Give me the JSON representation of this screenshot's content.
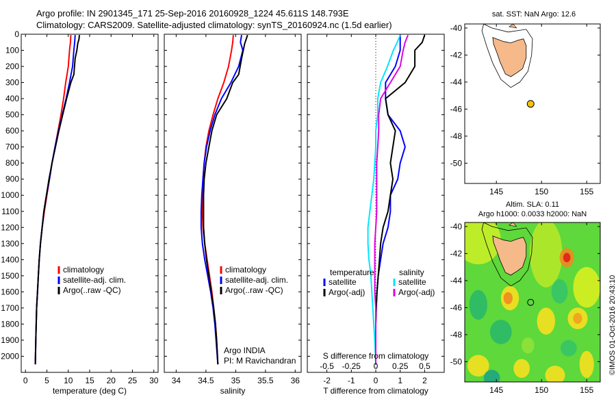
{
  "header": {
    "line1": "Argo profile: IN 2901345_171 25-Sep-2016 20160928_1224 45.611S 148.793E",
    "line2": "Climatology: CARS2009. Satellite-adjusted climatology: synTS_20160924.nc (1.5d earlier)"
  },
  "colors": {
    "climatology": "#ff0000",
    "satellite": "#0000ff",
    "argo": "#000000",
    "cyan": "#00e5ff",
    "magenta": "#e000e0",
    "land": "#f5b98a"
  },
  "chart_data": [
    {
      "type": "line",
      "name": "temperature-profile",
      "xlabel": "temperature (deg C)",
      "ylabel": "",
      "xlim": [
        -1,
        31
      ],
      "ylim": [
        2100,
        0
      ],
      "xticks": [
        0,
        5,
        10,
        15,
        20,
        25,
        30
      ],
      "yticks": [
        0,
        100,
        200,
        300,
        400,
        500,
        600,
        700,
        800,
        900,
        1000,
        1100,
        1200,
        1300,
        1400,
        1500,
        1600,
        1700,
        1800,
        1900,
        2000
      ],
      "legend": [
        "climatology",
        "satellite-adj. clim.",
        "Argo(..raw -QC)"
      ],
      "legend_placement": "lower-right",
      "series": [
        {
          "name": "climatology",
          "color": "#ff0000",
          "x": [
            10.6,
            10.5,
            10.3,
            10.0,
            9.4,
            8.9,
            8.3,
            7.6,
            6.9,
            6.2,
            5.6,
            5.0,
            4.4,
            3.9,
            3.5,
            3.2,
            3.0,
            2.8,
            2.6,
            2.5,
            2.4,
            2.3
          ],
          "y": [
            5,
            50,
            100,
            200,
            300,
            400,
            500,
            600,
            700,
            800,
            900,
            1000,
            1100,
            1200,
            1300,
            1400,
            1500,
            1600,
            1700,
            1800,
            1900,
            2050
          ]
        },
        {
          "name": "satellite-adj. clim.",
          "color": "#0000ff",
          "x": [
            11.6,
            11.5,
            11.3,
            11.0,
            10.3,
            9.5,
            8.6,
            7.7,
            6.9,
            6.2,
            5.6,
            4.9,
            4.3,
            3.9,
            3.5,
            3.2,
            3.0,
            2.8,
            2.6,
            2.5,
            2.4,
            2.3
          ],
          "y": [
            5,
            50,
            100,
            200,
            300,
            400,
            500,
            600,
            700,
            800,
            900,
            1000,
            1100,
            1200,
            1300,
            1400,
            1500,
            1600,
            1700,
            1800,
            1900,
            2050
          ]
        },
        {
          "name": "Argo(..raw -QC)",
          "color": "#000000",
          "x": [
            12.6,
            12.5,
            12.2,
            12.0,
            11.6,
            11.3,
            10.6,
            9.6,
            8.7,
            7.8,
            7.0,
            6.2,
            5.5,
            4.9,
            4.3,
            3.9,
            3.5,
            3.2,
            3.0,
            2.8,
            2.6,
            2.5,
            2.4,
            2.3
          ],
          "y": [
            5,
            30,
            60,
            100,
            150,
            250,
            300,
            400,
            500,
            600,
            700,
            800,
            900,
            1000,
            1100,
            1200,
            1300,
            1400,
            1500,
            1600,
            1700,
            1800,
            1900,
            2050
          ]
        }
      ]
    },
    {
      "type": "line",
      "name": "salinity-profile",
      "xlabel": "salinity",
      "ylabel": "",
      "xlim": [
        33.8,
        36.1
      ],
      "ylim": [
        2100,
        0
      ],
      "xticks": [
        34,
        34.5,
        35,
        35.5,
        36
      ],
      "legend": [
        "climatology",
        "satellite-adj. clim.",
        "Argo(..raw -QC)"
      ],
      "legend_placement": "lower-right",
      "annotation": [
        "Argo INDIA",
        "PI: M Ravichandran"
      ],
      "series": [
        {
          "name": "climatology",
          "color": "#ff0000",
          "x": [
            34.96,
            34.95,
            34.93,
            34.88,
            34.8,
            34.7,
            34.62,
            34.55,
            34.5,
            34.47,
            34.45,
            34.44,
            34.44,
            34.45,
            34.48,
            34.52,
            34.56,
            34.6,
            34.63,
            34.66,
            34.68,
            34.7
          ],
          "y": [
            5,
            50,
            100,
            200,
            300,
            400,
            500,
            600,
            700,
            800,
            900,
            1000,
            1100,
            1200,
            1300,
            1400,
            1500,
            1600,
            1700,
            1800,
            1900,
            2050
          ]
        },
        {
          "name": "satellite-adj. clim.",
          "color": "#0000ff",
          "x": [
            35.1,
            35.08,
            35.12,
            35.05,
            34.92,
            34.76,
            34.65,
            34.57,
            34.51,
            34.47,
            34.45,
            34.43,
            34.42,
            34.42,
            34.44,
            34.48,
            34.53,
            34.58,
            34.62,
            34.65,
            34.67,
            34.7
          ],
          "y": [
            5,
            50,
            100,
            200,
            300,
            400,
            500,
            600,
            700,
            800,
            900,
            1000,
            1100,
            1200,
            1300,
            1400,
            1500,
            1600,
            1700,
            1800,
            1900,
            2050
          ]
        },
        {
          "name": "Argo(..raw -QC)",
          "color": "#000000",
          "x": [
            35.2,
            35.15,
            35.1,
            35.05,
            34.95,
            34.85,
            34.68,
            34.6,
            34.55,
            34.5,
            34.47,
            34.46,
            34.46,
            34.46,
            34.48,
            34.51,
            34.55,
            34.59,
            34.63,
            34.66,
            34.68,
            34.7
          ],
          "y": [
            5,
            60,
            150,
            250,
            300,
            400,
            500,
            600,
            700,
            800,
            900,
            1000,
            1100,
            1200,
            1300,
            1400,
            1500,
            1600,
            1700,
            1800,
            1900,
            2050
          ]
        }
      ]
    },
    {
      "type": "line",
      "name": "difference-profile",
      "xlabel": "T difference from climatology",
      "xlabel_top": "S difference from climatology",
      "ylabel": "",
      "xlim": [
        -2.8,
        2.8
      ],
      "ylim": [
        2100,
        0
      ],
      "xticks": [
        -2,
        -1,
        0,
        1,
        2
      ],
      "s_xticks": [
        -0.5,
        -0.25,
        0,
        0.25,
        0.5
      ],
      "legend_temperature_title": "temperature",
      "legend_salinity_title": "salinity",
      "legend_temperature": [
        "satellite",
        "Argo(-adj)"
      ],
      "legend_salinity": [
        "satellite",
        "Argo(-adj)"
      ],
      "series": [
        {
          "name": "temperature satellite",
          "color": "#0000ff",
          "x": [
            1.0,
            1.0,
            1.0,
            0.8,
            0.4,
            0.4,
            0.5,
            1.0,
            1.2,
            1.0,
            0.9,
            0.6,
            0.6,
            0.5,
            0.3,
            0.2,
            0.1,
            0.05,
            0.02,
            0.0,
            0.0,
            0.0
          ],
          "y": [
            5,
            50,
            100,
            200,
            300,
            400,
            500,
            600,
            700,
            800,
            900,
            1000,
            1100,
            1200,
            1300,
            1400,
            1500,
            1600,
            1700,
            1800,
            1900,
            2050
          ]
        },
        {
          "name": "temperature Argo(-adj)",
          "color": "#000000",
          "x": [
            2.0,
            1.9,
            1.6,
            1.6,
            1.2,
            0.4,
            0.5,
            0.8,
            0.7,
            0.6,
            0.7,
            0.6,
            0.5,
            0.3,
            0.2,
            0.15,
            0.1,
            0.05,
            0.02,
            0.0,
            0.0,
            0.0
          ],
          "y": [
            5,
            50,
            100,
            200,
            300,
            400,
            500,
            600,
            700,
            800,
            900,
            1000,
            1100,
            1200,
            1300,
            1400,
            1500,
            1600,
            1700,
            1800,
            1900,
            2050
          ]
        },
        {
          "name": "salinity satellite",
          "color": "#00e5ff",
          "x": [
            0.25,
            0.22,
            0.18,
            0.12,
            0.05,
            0.02,
            0.02,
            0.0,
            0.0,
            -0.01,
            -0.02,
            -0.04,
            -0.06,
            -0.08,
            -0.08,
            -0.07,
            -0.05,
            -0.04,
            -0.03,
            -0.02,
            -0.01,
            0.0
          ],
          "y": [
            5,
            50,
            100,
            200,
            300,
            400,
            500,
            600,
            700,
            800,
            900,
            1000,
            1100,
            1200,
            1300,
            1400,
            1500,
            1600,
            1700,
            1800,
            1900,
            2050
          ]
        },
        {
          "name": "salinity Argo(-adj)",
          "color": "#e000e0",
          "x": [
            0.33,
            0.3,
            0.28,
            0.25,
            0.15,
            0.05,
            0.03,
            0.03,
            0.02,
            0.01,
            0.01,
            0.01,
            0.01,
            0.0,
            -0.01,
            -0.01,
            -0.01,
            -0.01,
            0.0,
            0.0,
            0.0,
            0.0
          ],
          "y": [
            5,
            50,
            100,
            200,
            300,
            400,
            500,
            600,
            700,
            800,
            900,
            1000,
            1100,
            1200,
            1300,
            1400,
            1500,
            1600,
            1700,
            1800,
            1900,
            2050
          ]
        }
      ]
    },
    {
      "type": "scatter",
      "name": "sst-map",
      "title": "sat. SST: NaN Argo: 12.6",
      "xlim": [
        141.5,
        156.5
      ],
      "ylim": [
        -51.5,
        -39.7
      ],
      "xticks": [
        145,
        150,
        155
      ],
      "yticks": [
        -40,
        -42,
        -44,
        -46,
        -48,
        -50
      ],
      "argo_position": {
        "lon": 148.793,
        "lat": -45.611
      }
    },
    {
      "type": "heatmap",
      "name": "sla-map",
      "title_line1": "Altim. SLA: 0.11",
      "title_line2": "Argo h1000: 0.0033 h2000: NaN",
      "side_label": "©IMOS 01-Oct-2016 20:43:10",
      "xlim": [
        141.5,
        156.5
      ],
      "ylim": [
        -51.5,
        -39.7
      ],
      "xticks": [
        145,
        150,
        155
      ],
      "yticks": [
        -40,
        -42,
        -44,
        -46,
        -48,
        -50
      ],
      "argo_position": {
        "lon": 148.793,
        "lat": -45.611
      }
    }
  ]
}
